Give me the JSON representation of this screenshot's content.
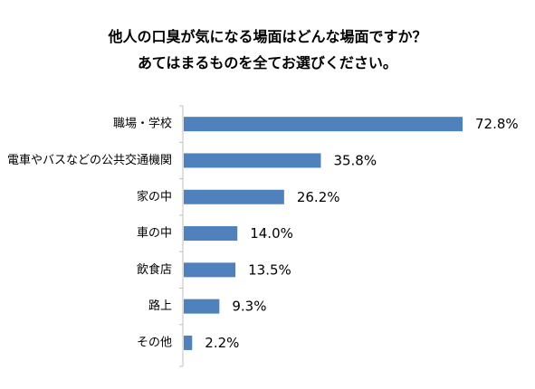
{
  "chart_data": {
    "type": "bar",
    "orientation": "horizontal",
    "title_lines": [
      "他人の口臭が気になる場面はどんな場面ですか？",
      "あてはまるものを全てお選びください。"
    ],
    "categories": [
      "職場・学校",
      "電車やバスなどの公共交通機関",
      "家の中",
      "車の中",
      "飲食店",
      "路上",
      "その他"
    ],
    "values": [
      72.8,
      35.8,
      26.2,
      14.0,
      13.5,
      9.3,
      2.2
    ],
    "value_labels": [
      "72.8%",
      "35.8%",
      "26.2%",
      "14.0%",
      "13.5%",
      "9.3%",
      "2.2%"
    ],
    "unit": "%",
    "xlim": [
      0,
      100
    ],
    "grid": false,
    "legend": "none",
    "bar_color": "#4f81bd",
    "axis_color": "#bfbfbf"
  }
}
